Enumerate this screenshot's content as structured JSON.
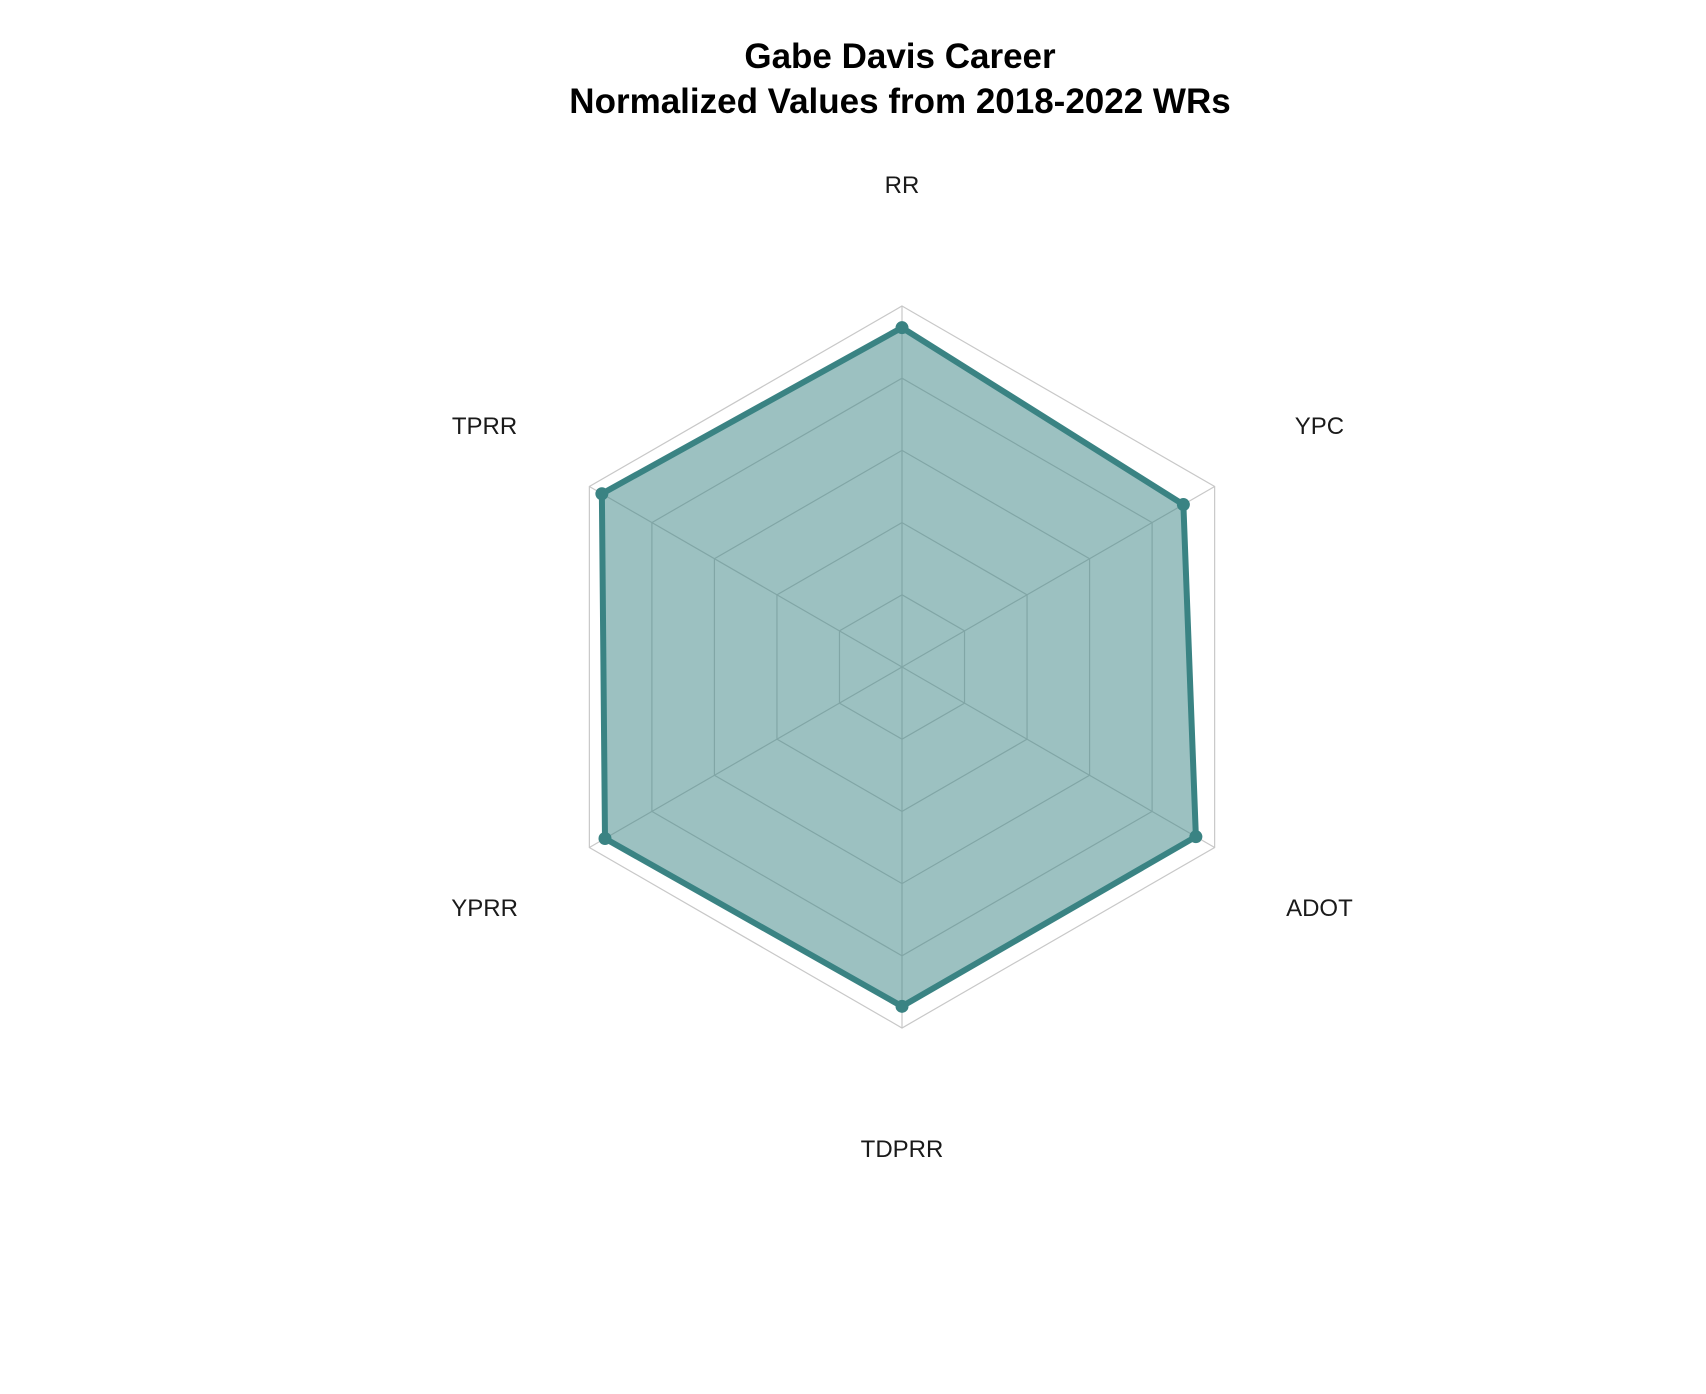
{
  "chart_data": {
    "type": "radar",
    "title": "Gabe Davis Career",
    "subtitle": "Normalized Values from 2018-2022 WRs",
    "axes": [
      "RR",
      "YPC",
      "ADOT",
      "TDPRR",
      "YPRR",
      "TPRR"
    ],
    "series": [
      {
        "name": "Gabe Davis",
        "values": [
          0.94,
          0.9,
          0.94,
          0.94,
          0.95,
          0.96
        ]
      }
    ],
    "range": [
      0,
      1
    ],
    "grid_levels": [
      0.2,
      0.4,
      0.6,
      0.8,
      1.0
    ],
    "colors": {
      "series_line": "#3a8383",
      "series_fill": "#3a8383",
      "grid": "#c8c8c8"
    }
  }
}
